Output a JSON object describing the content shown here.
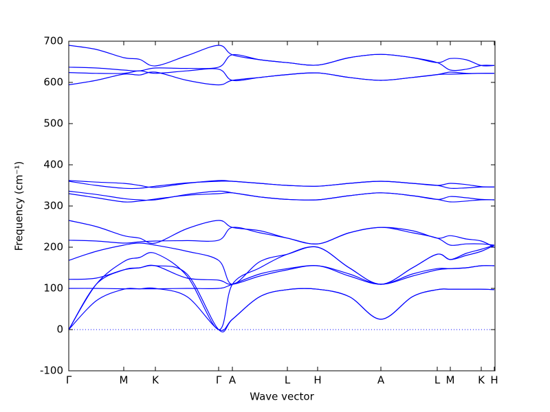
{
  "chart_data": {
    "type": "line",
    "xlabel": "Wave vector",
    "ylabel": "Frequency (cm⁻¹)",
    "x": [
      0,
      40,
      80,
      103,
      126,
      172,
      218,
      238,
      278,
      318,
      362,
      408,
      454,
      500,
      536,
      555,
      578,
      600,
      619
    ],
    "xlim": [
      0,
      620
    ],
    "xticks": [
      {
        "value": 0,
        "label": "Γ"
      },
      {
        "value": 80,
        "label": "M"
      },
      {
        "value": 126,
        "label": "K"
      },
      {
        "value": 218,
        "label": "Γ"
      },
      {
        "value": 238,
        "label": "A"
      },
      {
        "value": 318,
        "label": "L"
      },
      {
        "value": 362,
        "label": "H"
      },
      {
        "value": 454,
        "label": "A"
      },
      {
        "value": 536,
        "label": "L"
      },
      {
        "value": 555,
        "label": "M"
      },
      {
        "value": 600,
        "label": "K"
      },
      {
        "value": 619,
        "label": "H"
      }
    ],
    "ylim": [
      -100,
      700
    ],
    "yticks": [
      -100,
      0,
      100,
      200,
      300,
      400,
      500,
      600,
      700
    ],
    "hline": 0,
    "color": "#0000ff",
    "series": [
      {
        "color": "#0000ff",
        "values": [
          0,
          70,
          98,
          99,
          100,
          80,
          0,
          25,
          80,
          97,
          98,
          80,
          25,
          80,
          97,
          98,
          98,
          98,
          97
        ]
      },
      {
        "color": "#0000ff",
        "values": [
          0,
          110,
          145,
          150,
          155,
          135,
          0,
          25,
          80,
          97,
          98,
          80,
          25,
          80,
          97,
          98,
          98,
          98,
          97
        ]
      },
      {
        "color": "#0000ff",
        "values": [
          0,
          110,
          165,
          175,
          185,
          130,
          0,
          110,
          150,
          183,
          200,
          150,
          110,
          150,
          183,
          170,
          180,
          190,
          205
        ]
      },
      {
        "color": "#0000ff",
        "values": [
          122,
          125,
          145,
          150,
          155,
          125,
          120,
          110,
          130,
          145,
          155,
          130,
          110,
          130,
          145,
          148,
          150,
          155,
          155
        ]
      },
      {
        "color": "#0000ff",
        "values": [
          100,
          100,
          99,
          99,
          99,
          100,
          100,
          110,
          135,
          148,
          155,
          135,
          110,
          135,
          148,
          148,
          150,
          155,
          155
        ]
      },
      {
        "color": "#0000ff",
        "values": [
          168,
          190,
          205,
          210,
          205,
          190,
          168,
          110,
          165,
          183,
          200,
          150,
          110,
          150,
          183,
          170,
          185,
          195,
          205
        ]
      },
      {
        "color": "#0000ff",
        "values": [
          217,
          215,
          210,
          213,
          215,
          216,
          217,
          248,
          235,
          222,
          208,
          235,
          248,
          235,
          222,
          205,
          208,
          208,
          205
        ]
      },
      {
        "color": "#0000ff",
        "values": [
          265,
          250,
          228,
          222,
          210,
          245,
          265,
          248,
          240,
          222,
          208,
          235,
          248,
          240,
          222,
          228,
          220,
          215,
          200
        ]
      },
      {
        "color": "#0000ff",
        "values": [
          330,
          320,
          310,
          312,
          317,
          326,
          330,
          332,
          322,
          316,
          315,
          325,
          332,
          325,
          316,
          310,
          312,
          315,
          315
        ]
      },
      {
        "color": "#0000ff",
        "values": [
          336,
          328,
          318,
          315,
          315,
          328,
          336,
          332,
          322,
          316,
          315,
          325,
          332,
          325,
          316,
          323,
          320,
          316,
          315
        ]
      },
      {
        "color": "#0000ff",
        "values": [
          360,
          350,
          343,
          343,
          348,
          356,
          360,
          360,
          355,
          350,
          348,
          355,
          360,
          355,
          350,
          343,
          344,
          346,
          346
        ]
      },
      {
        "color": "#0000ff",
        "values": [
          362,
          358,
          355,
          350,
          345,
          355,
          362,
          360,
          355,
          350,
          348,
          355,
          360,
          355,
          350,
          355,
          352,
          347,
          346
        ]
      },
      {
        "color": "#0000ff",
        "values": [
          594,
          605,
          620,
          618,
          625,
          605,
          594,
          605,
          612,
          619,
          623,
          612,
          605,
          612,
          619,
          620,
          621,
          622,
          622
        ]
      },
      {
        "color": "#0000ff",
        "values": [
          624,
          622,
          622,
          628,
          622,
          628,
          632,
          605,
          612,
          619,
          623,
          612,
          605,
          612,
          619,
          625,
          622,
          622,
          622
        ]
      },
      {
        "color": "#0000ff",
        "values": [
          637,
          635,
          630,
          628,
          635,
          634,
          637,
          667,
          655,
          648,
          642,
          660,
          668,
          660,
          648,
          630,
          632,
          641,
          641
        ]
      },
      {
        "color": "#0000ff",
        "values": [
          690,
          680,
          660,
          656,
          640,
          665,
          690,
          667,
          655,
          648,
          642,
          660,
          668,
          660,
          648,
          658,
          655,
          641,
          641
        ]
      }
    ]
  }
}
